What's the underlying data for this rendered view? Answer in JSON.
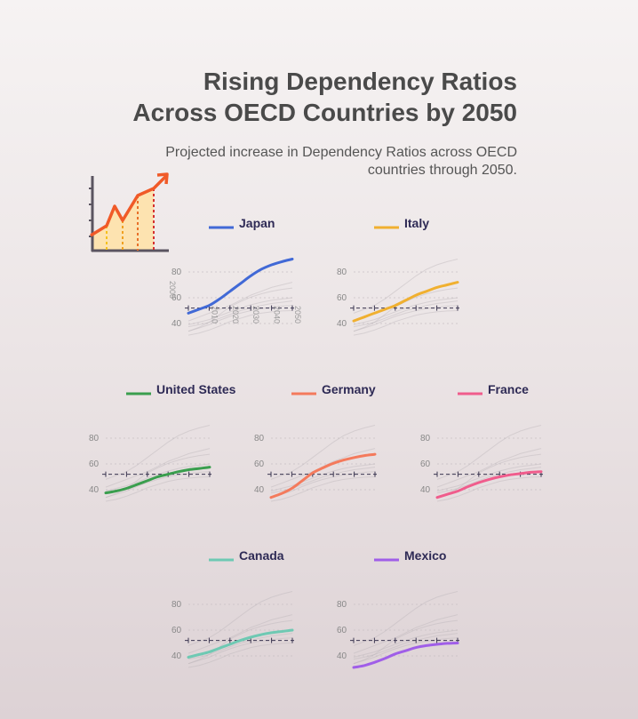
{
  "title_lines": [
    "Rising Dependency Ratios",
    "Across OECD Countries by 2050"
  ],
  "subtitle": "Projected increase in Dependency Ratios across OECD countries through 2050.",
  "chart_data": {
    "type": "line",
    "subtype": "small-multiples",
    "x": [
      2000,
      2005,
      2010,
      2015,
      2020,
      2025,
      2030,
      2035,
      2040,
      2045,
      2050
    ],
    "x_ticks": [
      2000,
      2010,
      2020,
      2030,
      2040,
      2050
    ],
    "y_ticks": [
      40,
      60,
      80
    ],
    "ylim": [
      35,
      90
    ],
    "reference_line": 52,
    "series": [
      {
        "name": "Japan",
        "color": "#4169d6",
        "values": [
          48,
          51,
          54,
          59,
          65,
          71,
          77,
          82,
          85.5,
          88,
          90
        ]
      },
      {
        "name": "Italy",
        "color": "#f0b030",
        "values": [
          42,
          45,
          48,
          51,
          54,
          58,
          62,
          65,
          68,
          70,
          72
        ]
      },
      {
        "name": "United States",
        "color": "#3a9e4e",
        "values": [
          37.5,
          39,
          41,
          44,
          47,
          50,
          52,
          54,
          55.5,
          56.5,
          57.5
        ]
      },
      {
        "name": "Germany",
        "color": "#f47a5c",
        "values": [
          34,
          37,
          41,
          47,
          53,
          57,
          60.5,
          63,
          65,
          66.5,
          67.5
        ]
      },
      {
        "name": "France",
        "color": "#f05c8c",
        "values": [
          34,
          36.5,
          39,
          42.5,
          45.5,
          48,
          50,
          51.5,
          52.5,
          53.5,
          54
        ]
      },
      {
        "name": "Canada",
        "color": "#6ec9b3",
        "values": [
          39,
          41,
          43,
          46,
          49,
          52,
          54.5,
          56.5,
          58,
          59,
          60
        ]
      },
      {
        "name": "Mexico",
        "color": "#a05ee8",
        "values": [
          31,
          32.5,
          35,
          38,
          41.5,
          44,
          46.5,
          48,
          49,
          49.7,
          50
        ]
      }
    ]
  },
  "icon": {
    "name": "rising-line-chart-icon",
    "line_color": "#f05a28",
    "fill_color": "#fde3b0"
  }
}
